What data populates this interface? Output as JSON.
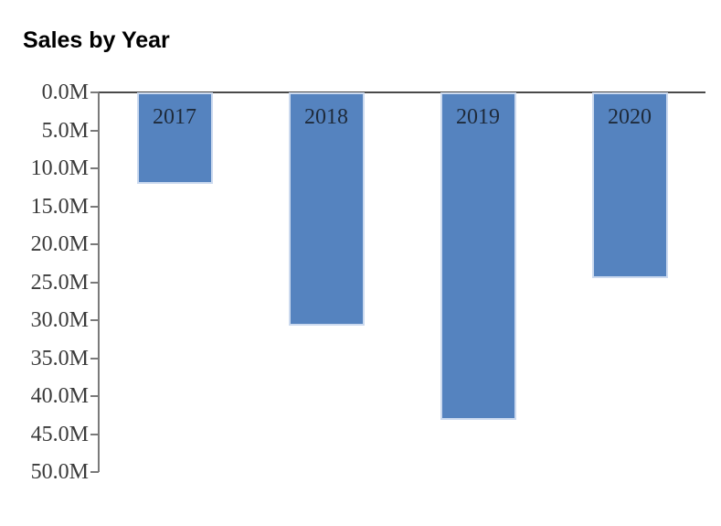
{
  "chart_data": {
    "type": "bar",
    "title": "Sales by Year",
    "categories": [
      "2017",
      "2018",
      "2019",
      "2020"
    ],
    "values": [
      12.1,
      30.7,
      43.1,
      24.5
    ],
    "value_unit": "M",
    "xlabel": "",
    "ylabel": "",
    "ylim": [
      0,
      50
    ],
    "y_axis_inverted": true,
    "yticks": [
      "0.0M",
      "5.0M",
      "10.0M",
      "15.0M",
      "20.0M",
      "25.0M",
      "30.0M",
      "35.0M",
      "40.0M",
      "45.0M",
      "50.0M"
    ],
    "grid": false,
    "legend_position": "none",
    "bar_label_position": "inside-top",
    "colors": {
      "bar_fill": "#5583bf",
      "bar_border": "#ccdaef",
      "bar_label_text": "#1e2a3a",
      "tick_label_text": "#3b3b3b",
      "axis_line": "#7a7a7a",
      "baseline": "#4a4a4a",
      "title_text": "#000000",
      "background": "#ffffff"
    }
  }
}
